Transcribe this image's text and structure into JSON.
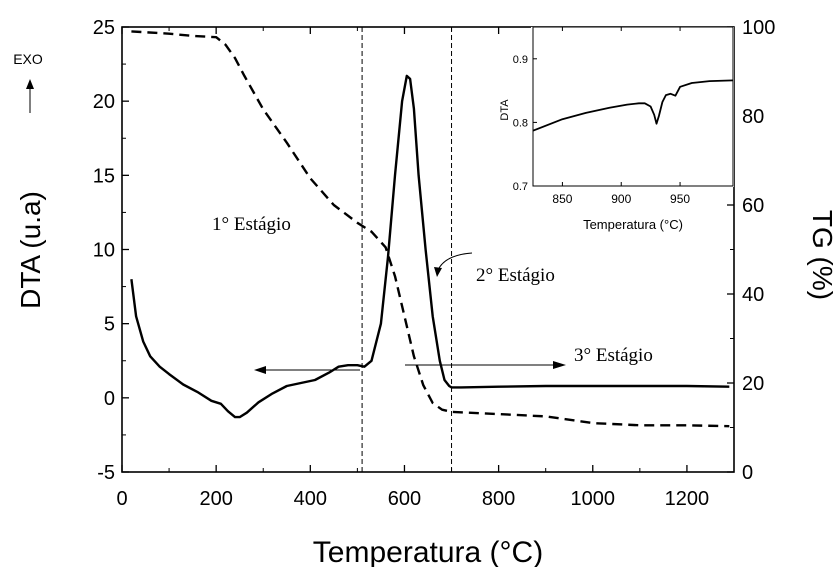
{
  "chart_data": [
    {
      "type": "line",
      "xlabel": "Temperatura (°C)",
      "ylabel_left": "DTA (u.a)",
      "ylabel_right": "TG (%)",
      "xlim": [
        0,
        1300
      ],
      "ylim_left": [
        -5,
        25
      ],
      "ylim_right": [
        0,
        100
      ],
      "x_ticks": [
        0,
        200,
        400,
        600,
        800,
        1000,
        1200
      ],
      "y_left_ticks": [
        -5,
        0,
        5,
        10,
        15,
        20,
        25
      ],
      "y_right_ticks": [
        0,
        20,
        40,
        60,
        80,
        100
      ],
      "exo_label": "EXO",
      "vertical_lines": [
        510,
        700
      ],
      "annotations": [
        "1° Estágio",
        "2° Estágio",
        "3° Estágio"
      ],
      "series": [
        {
          "axis": "left",
          "style": "solid",
          "x": [
            20,
            30,
            45,
            60,
            80,
            100,
            130,
            160,
            190,
            210,
            225,
            240,
            250,
            265,
            290,
            320,
            350,
            380,
            410,
            440,
            460,
            480,
            500,
            515,
            530,
            550,
            565,
            580,
            595,
            605,
            612,
            620,
            630,
            645,
            660,
            675,
            685,
            695,
            700,
            720,
            800,
            900,
            1000,
            1100,
            1200,
            1290
          ],
          "y": [
            8.0,
            5.5,
            3.8,
            2.8,
            2.1,
            1.6,
            0.9,
            0.4,
            -0.2,
            -0.4,
            -0.9,
            -1.3,
            -1.3,
            -1.0,
            -0.3,
            0.3,
            0.8,
            1.0,
            1.2,
            1.7,
            2.1,
            2.2,
            2.2,
            2.1,
            2.5,
            5.0,
            9.5,
            15.0,
            20.0,
            21.7,
            21.5,
            19.5,
            15.0,
            10.0,
            5.5,
            2.5,
            1.2,
            0.8,
            0.7,
            0.7,
            0.75,
            0.8,
            0.8,
            0.8,
            0.8,
            0.75
          ]
        },
        {
          "axis": "right",
          "style": "dashed",
          "x": [
            20,
            100,
            150,
            200,
            220,
            240,
            260,
            300,
            350,
            400,
            450,
            500,
            530,
            560,
            580,
            600,
            620,
            640,
            660,
            680,
            700,
            800,
            900,
            1000,
            1100,
            1200,
            1290
          ],
          "y": [
            99,
            98.5,
            98,
            97.7,
            96,
            93,
            89,
            81.5,
            74,
            66,
            60,
            56,
            54,
            50.5,
            44,
            35,
            26,
            19.5,
            15.5,
            14,
            13.5,
            13,
            12.5,
            11,
            10.5,
            10.5,
            10.3
          ]
        }
      ]
    },
    {
      "type": "line",
      "xlabel": "Temperatura (°C)",
      "ylabel": "DTA",
      "xlim": [
        825,
        995
      ],
      "ylim": [
        0.7,
        0.95
      ],
      "x_ticks": [
        850,
        900,
        950
      ],
      "y_ticks": [
        0.7,
        0.8,
        0.9
      ],
      "series": [
        {
          "style": "solid",
          "x": [
            825,
            850,
            870,
            890,
            905,
            915,
            920,
            925,
            928,
            930,
            932,
            935,
            938,
            942,
            946,
            950,
            960,
            975,
            995
          ],
          "y": [
            0.787,
            0.805,
            0.815,
            0.823,
            0.828,
            0.83,
            0.83,
            0.825,
            0.812,
            0.798,
            0.81,
            0.832,
            0.843,
            0.845,
            0.842,
            0.856,
            0.862,
            0.865,
            0.866
          ]
        }
      ]
    }
  ]
}
